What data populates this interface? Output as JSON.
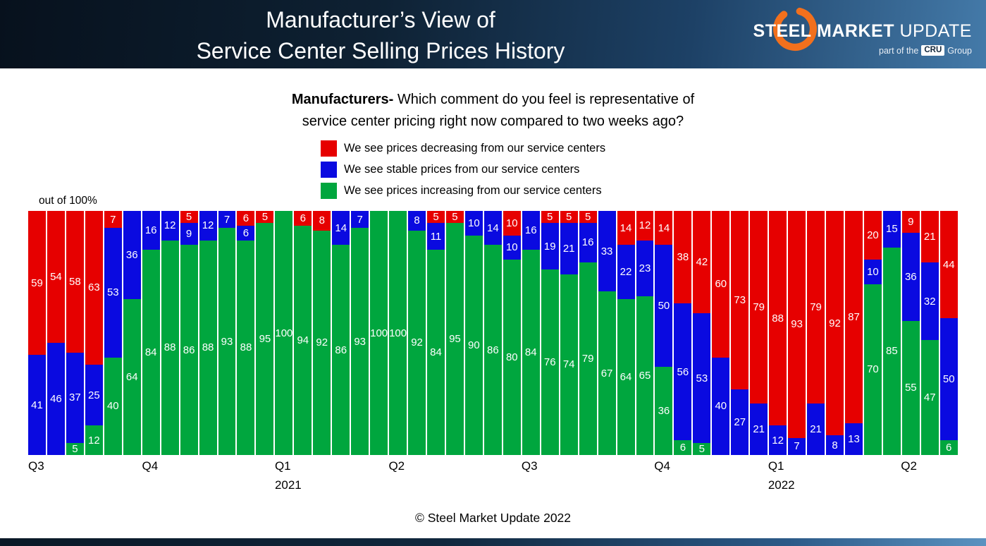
{
  "header": {
    "title_line1": "Manufacturer’s View of",
    "title_line2": "Service Center Selling Prices History",
    "logo": {
      "steel": "STEEL",
      "market": "MARKET",
      "update": "UPDATE",
      "tagline_prefix": "part of the",
      "tagline_cru": "CRU",
      "tagline_suffix": "Group",
      "orange": "#f2701d"
    }
  },
  "subtitle": {
    "bold": "Manufacturers-",
    "line1_rest": " Which comment do you feel is representative of",
    "line2": "service center pricing right now compared to two weeks ago?"
  },
  "legend": [
    {
      "key": "decreasing",
      "label": "We see prices decreasing from our service centers",
      "color": "#e60000"
    },
    {
      "key": "stable",
      "label": "We see stable prices from our service centers",
      "color": "#0a0ae0"
    },
    {
      "key": "increasing",
      "label": "We see prices increasing from our service centers",
      "color": "#00a63e"
    }
  ],
  "axis_note": "out of 100%",
  "footer": "© Steel Market Update 2022",
  "chart_data": {
    "type": "bar",
    "stacked": true,
    "percent": true,
    "title": "Manufacturers- Which comment do you feel is representative of service center pricing right now compared to two weeks ago?",
    "ylabel": "out of 100%",
    "ylim": [
      0,
      100
    ],
    "grid": false,
    "legend_position": "top",
    "colors": {
      "decreasing": "#e60000",
      "stable": "#0a0ae0",
      "increasing": "#00a63e"
    },
    "series_order_top_to_bottom": [
      "decreasing",
      "stable",
      "increasing"
    ],
    "series": [
      {
        "key": "decreasing",
        "name": "We see prices decreasing from our service centers",
        "values": [
          59,
          54,
          58,
          63,
          7,
          0,
          0,
          0,
          5,
          0,
          0,
          6,
          5,
          0,
          6,
          8,
          0,
          0,
          0,
          0,
          0,
          5,
          5,
          0,
          0,
          10,
          0,
          5,
          5,
          5,
          0,
          14,
          12,
          14,
          38,
          42,
          60,
          73,
          79,
          88,
          93,
          79,
          92,
          87,
          20,
          0,
          9,
          21,
          44
        ]
      },
      {
        "key": "stable",
        "name": "We see stable prices from our service centers",
        "values": [
          41,
          46,
          37,
          25,
          53,
          36,
          16,
          12,
          9,
          12,
          7,
          6,
          0,
          0,
          0,
          0,
          14,
          7,
          0,
          0,
          8,
          11,
          0,
          10,
          14,
          10,
          16,
          19,
          21,
          16,
          33,
          22,
          23,
          50,
          56,
          53,
          40,
          27,
          21,
          12,
          7,
          21,
          8,
          13,
          10,
          15,
          36,
          32,
          50
        ]
      },
      {
        "key": "increasing",
        "name": "We see prices increasing from our service centers",
        "values": [
          0,
          0,
          5,
          12,
          40,
          64,
          84,
          88,
          86,
          88,
          93,
          88,
          95,
          100,
          94,
          92,
          86,
          93,
          100,
          100,
          92,
          84,
          95,
          90,
          86,
          80,
          84,
          76,
          74,
          79,
          67,
          64,
          65,
          36,
          6,
          5,
          0,
          0,
          0,
          0,
          0,
          0,
          0,
          0,
          70,
          85,
          55,
          47,
          6
        ]
      }
    ],
    "x_axis": [
      {
        "label": "Q3",
        "index": 0
      },
      {
        "label": "Q4",
        "index": 6
      },
      {
        "label": "Q1",
        "index": 13,
        "year": "2021"
      },
      {
        "label": "Q2",
        "index": 19
      },
      {
        "label": "Q3",
        "index": 26
      },
      {
        "label": "Q4",
        "index": 33
      },
      {
        "label": "Q1",
        "index": 39,
        "year": "2022"
      },
      {
        "label": "Q2",
        "index": 46
      }
    ]
  }
}
